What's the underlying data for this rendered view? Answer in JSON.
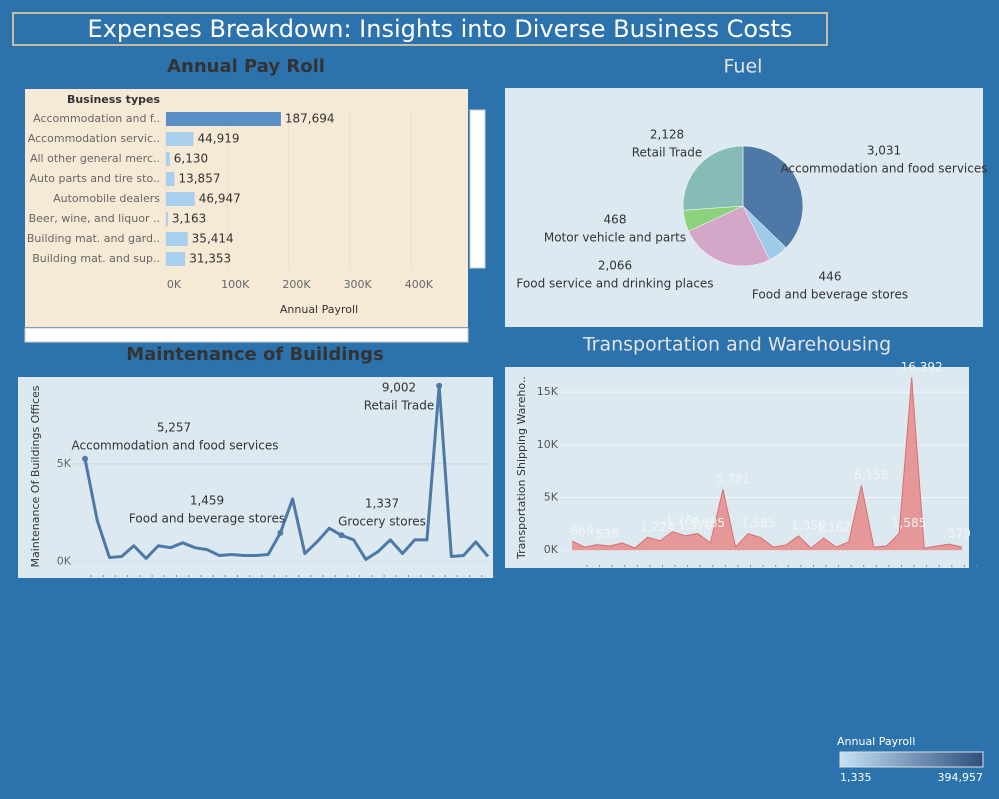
{
  "title": "Expenses Breakdown: Insights into Diverse Business Costs",
  "chart_data": [
    {
      "type": "hbar",
      "title": "Annual Pay Roll",
      "category_header": "Business types",
      "x_label": "Annual Payroll",
      "categories": [
        "Accommodation and f..",
        "Accommodation servic..",
        "All other general merc..",
        "Auto parts and tire sto..",
        "Automobile dealers",
        "Beer, wine, and liquor ..",
        "Building mat. and gard..",
        "Building mat. and sup.."
      ],
      "values": [
        187694,
        44919,
        6130,
        13857,
        46947,
        3163,
        35414,
        31353
      ],
      "value_labels": [
        "187,694",
        "44,919",
        "6,130",
        "13,857",
        "46,947",
        "3,163",
        "35,414",
        "31,353"
      ],
      "colors": [
        "#5b8ec6",
        "#a8d0ee",
        "#a8d0ee",
        "#a8d0ee",
        "#a8d0ee",
        "#a8d0ee",
        "#a8d0ee",
        "#a8d0ee"
      ],
      "xlim": [
        0,
        490000
      ],
      "xticks": [
        {
          "value": 0,
          "label": "0K"
        },
        {
          "value": 100000,
          "label": "100K"
        },
        {
          "value": 200000,
          "label": "200K"
        },
        {
          "value": 300000,
          "label": "300K"
        },
        {
          "value": 400000,
          "label": "400K"
        }
      ],
      "grid": true
    },
    {
      "type": "pie",
      "title": "Fuel",
      "categories": [
        "Accommodation and food services",
        "Food and beverage stores",
        "Food service and drinking places",
        "Motor vehicle and parts",
        "Retail Trade"
      ],
      "values": [
        3031,
        446,
        2066,
        468,
        2128
      ],
      "value_labels": [
        "3,031",
        "446",
        "2,066",
        "468",
        "2,128"
      ],
      "colors": [
        "#4e79a7",
        "#a0cbe8",
        "#d4a6c8",
        "#8cd17d",
        "#86bcb6"
      ]
    },
    {
      "type": "line",
      "title": "Maintenance of Buildings",
      "y_label": "Maintenance Of Buildings Offices",
      "categories": [
        "Accommodation and food services",
        null,
        null,
        null,
        null,
        null,
        null,
        null,
        null,
        null,
        null,
        null,
        null,
        null,
        null,
        null,
        "Food and beverage stores",
        null,
        null,
        null,
        null,
        "Grocery stores",
        null,
        null,
        null,
        null,
        null,
        null,
        null,
        "Retail Trade",
        null,
        null,
        null,
        null
      ],
      "values": [
        5257,
        2100,
        200,
        250,
        800,
        150,
        800,
        700,
        950,
        700,
        600,
        300,
        350,
        300,
        300,
        350,
        1459,
        3200,
        400,
        1000,
        1700,
        1337,
        1100,
        100,
        500,
        1100,
        400,
        1100,
        1100,
        9002,
        250,
        300,
        1000,
        250
      ],
      "value_labels": [
        "5,257",
        null,
        null,
        null,
        null,
        null,
        null,
        null,
        null,
        null,
        null,
        null,
        null,
        null,
        null,
        null,
        "1,459",
        null,
        null,
        null,
        null,
        "1,337",
        null,
        null,
        null,
        null,
        null,
        null,
        null,
        "9,002",
        null,
        null,
        null,
        null
      ],
      "color": "#4e79a7",
      "ylim": [
        -700,
        9400
      ],
      "yticks": [
        {
          "value": 0,
          "label": "0K"
        },
        {
          "value": 5000,
          "label": "5K"
        }
      ]
    },
    {
      "type": "area",
      "title": "Transportation and Warehousing",
      "y_label": "Transportation Shipping Wareho..",
      "values": [
        869,
        300,
        538,
        400,
        700,
        200,
        1224,
        900,
        1764,
        1370,
        1585,
        700,
        5781,
        300,
        1585,
        1200,
        300,
        500,
        1359,
        200,
        1162,
        300,
        800,
        6158,
        300,
        400,
        1585,
        16392,
        200,
        400,
        579,
        300
      ],
      "value_labels": [
        "869",
        null,
        "538",
        null,
        null,
        null,
        "1,224",
        null,
        "1,764",
        "1,370",
        "1,585",
        null,
        "5,781",
        null,
        "1,585",
        null,
        null,
        null,
        "1,359",
        null,
        "1,162",
        null,
        null,
        "6,158",
        null,
        null,
        "1,585",
        "16,392",
        null,
        null,
        "579",
        null
      ],
      "color": "#e8898a",
      "ylim": [
        -1400,
        17100
      ],
      "yticks": [
        {
          "value": 0,
          "label": "0K"
        },
        {
          "value": 5000,
          "label": "5K"
        },
        {
          "value": 10000,
          "label": "10K"
        },
        {
          "value": 15000,
          "label": "15K"
        }
      ]
    }
  ],
  "color_legend": {
    "title": "Annual Payroll",
    "min": {
      "value": 1335,
      "label": "1,335"
    },
    "max": {
      "value": 394957,
      "label": "394,957"
    },
    "colors": [
      "#c6e2f6",
      "#2c4f7c"
    ]
  }
}
